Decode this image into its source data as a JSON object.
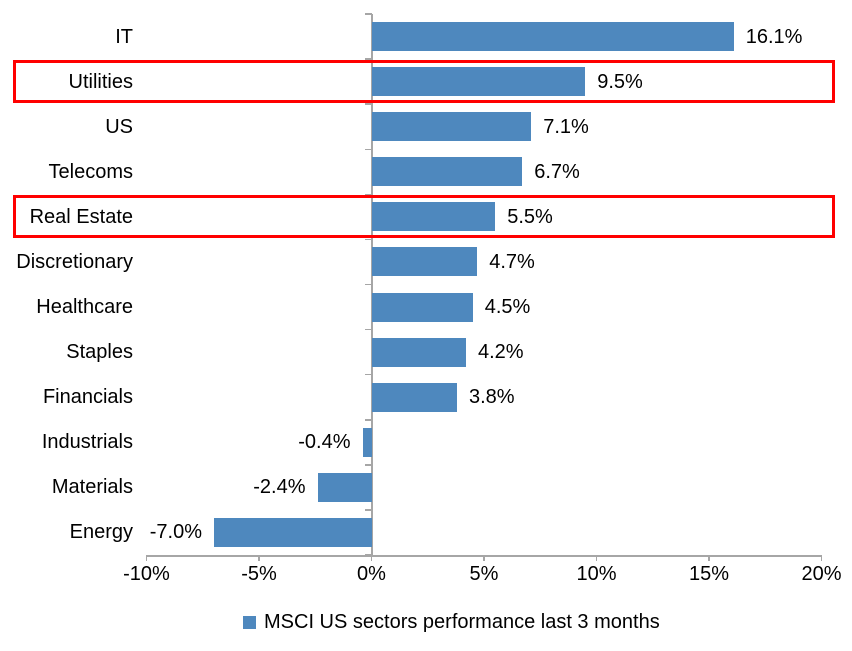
{
  "chart_data": {
    "type": "bar",
    "orientation": "horizontal",
    "title": "",
    "xlabel": "",
    "ylabel": "",
    "categories": [
      "IT",
      "Utilities",
      "US",
      "Telecoms",
      "Real Estate",
      "Discretionary",
      "Healthcare",
      "Staples",
      "Financials",
      "Industrials",
      "Materials",
      "Energy"
    ],
    "values": [
      16.1,
      9.5,
      7.1,
      6.7,
      5.5,
      4.7,
      4.5,
      4.2,
      3.8,
      -0.4,
      -2.4,
      -7.0
    ],
    "value_labels": [
      "16.1%",
      "9.5%",
      "7.1%",
      "6.7%",
      "5.5%",
      "4.7%",
      "4.5%",
      "4.2%",
      "3.8%",
      "-0.4%",
      "-2.4%",
      "-7.0%"
    ],
    "highlighted_categories": [
      "Utilities",
      "Real Estate"
    ],
    "xlim": [
      -10,
      20
    ],
    "x_ticks": [
      -10,
      -5,
      0,
      5,
      10,
      15,
      20
    ],
    "x_tick_labels": [
      "-10%",
      "-5%",
      "0%",
      "5%",
      "10%",
      "15%",
      "20%"
    ],
    "grid": false,
    "legend_position": "bottom",
    "legend_label": "MSCI US sectors performance last 3 months",
    "bar_color": "#4E88BE",
    "highlight_color": "#FF0000",
    "axis_color": "#A6A6A6",
    "text_color": "#000000"
  }
}
